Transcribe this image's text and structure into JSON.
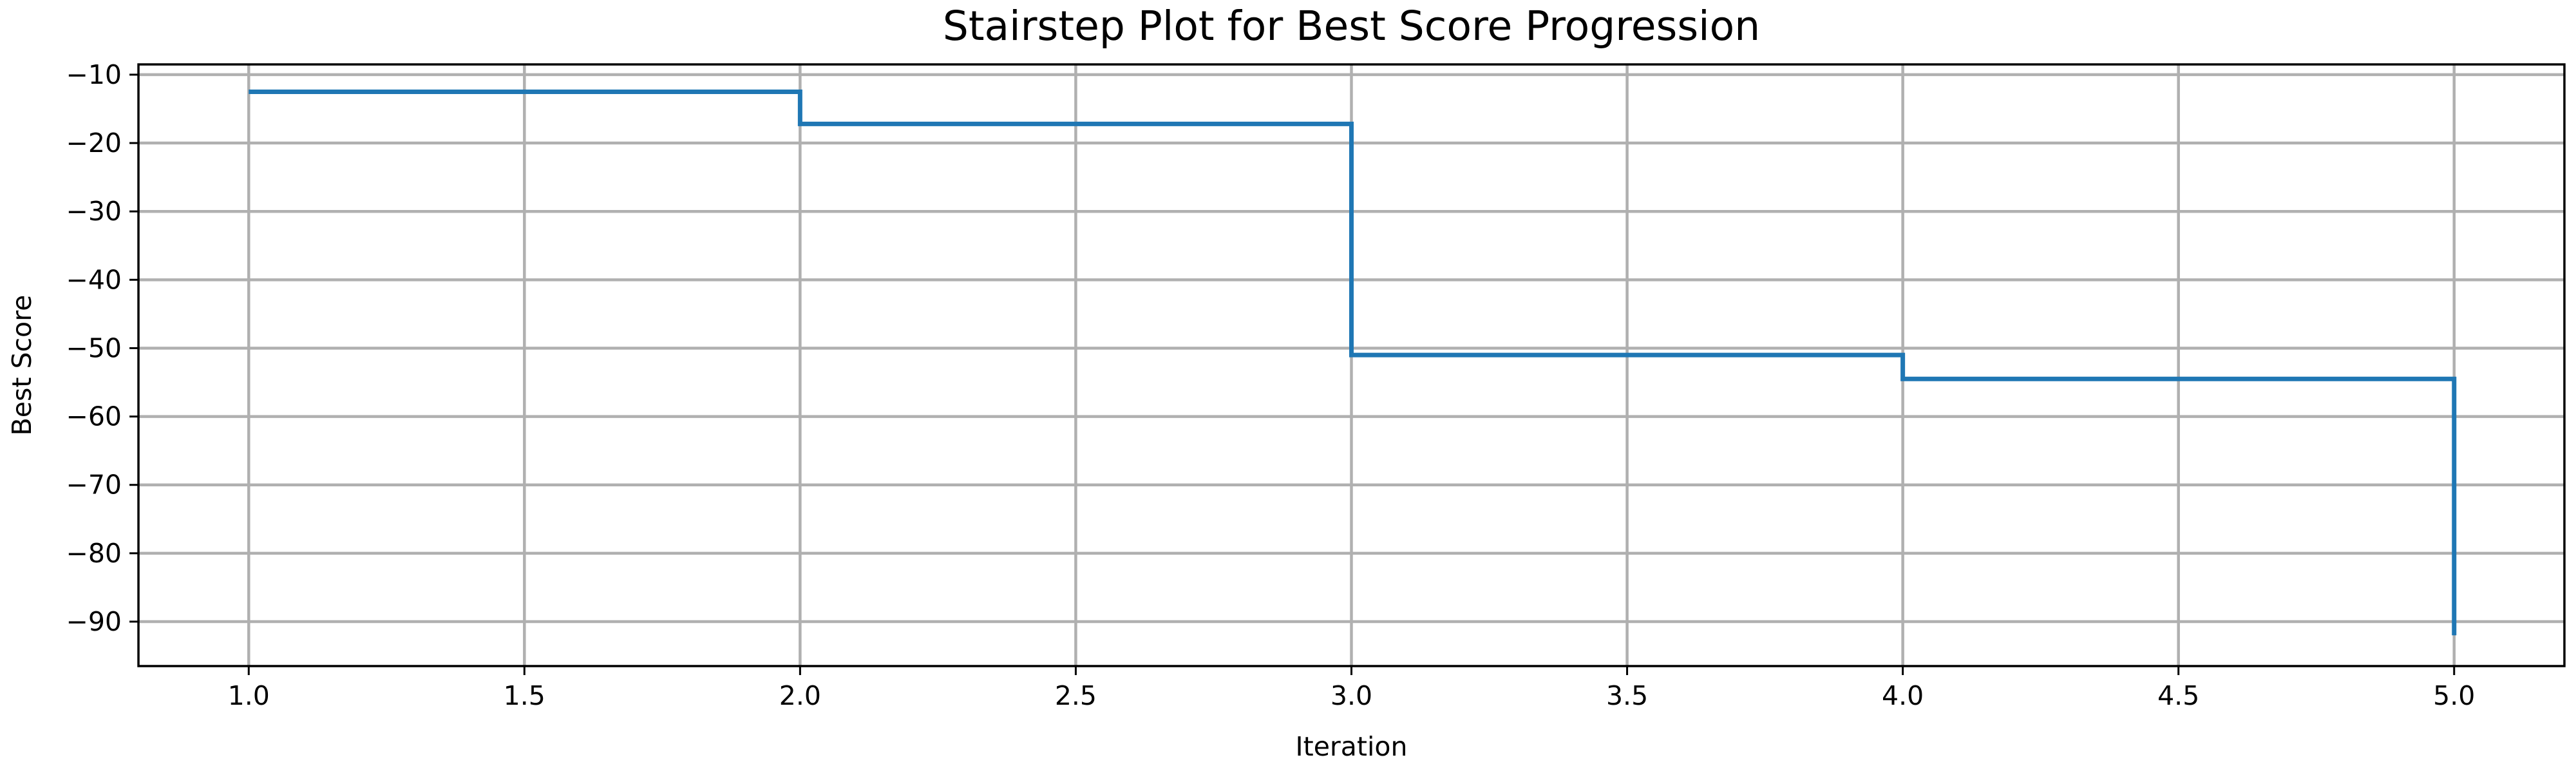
{
  "chart_data": {
    "type": "line",
    "style": "stairstep",
    "step_where": "post",
    "title": "Stairstep Plot for Best Score Progression",
    "xlabel": "Iteration",
    "ylabel": "Best Score",
    "xlim": [
      0.8,
      5.2
    ],
    "ylim": [
      -96.5,
      -8.5
    ],
    "x_ticks": [
      1.0,
      1.5,
      2.0,
      2.5,
      3.0,
      3.5,
      4.0,
      4.5,
      5.0
    ],
    "x_tick_labels": [
      "1.0",
      "1.5",
      "2.0",
      "2.5",
      "3.0",
      "3.5",
      "4.0",
      "4.5",
      "5.0"
    ],
    "y_ticks": [
      -10,
      -20,
      -30,
      -40,
      -50,
      -60,
      -70,
      -80,
      -90
    ],
    "y_tick_labels": [
      "−10",
      "−20",
      "−30",
      "−40",
      "−50",
      "−60",
      "−70",
      "−80",
      "−90"
    ],
    "grid": true,
    "legend": "none",
    "series": [
      {
        "x": [
          1,
          2,
          3,
          4,
          5
        ],
        "y": [
          -12.5,
          -17.2,
          -51.0,
          -54.5,
          -92.0
        ],
        "color": "#1f77b4"
      }
    ]
  }
}
